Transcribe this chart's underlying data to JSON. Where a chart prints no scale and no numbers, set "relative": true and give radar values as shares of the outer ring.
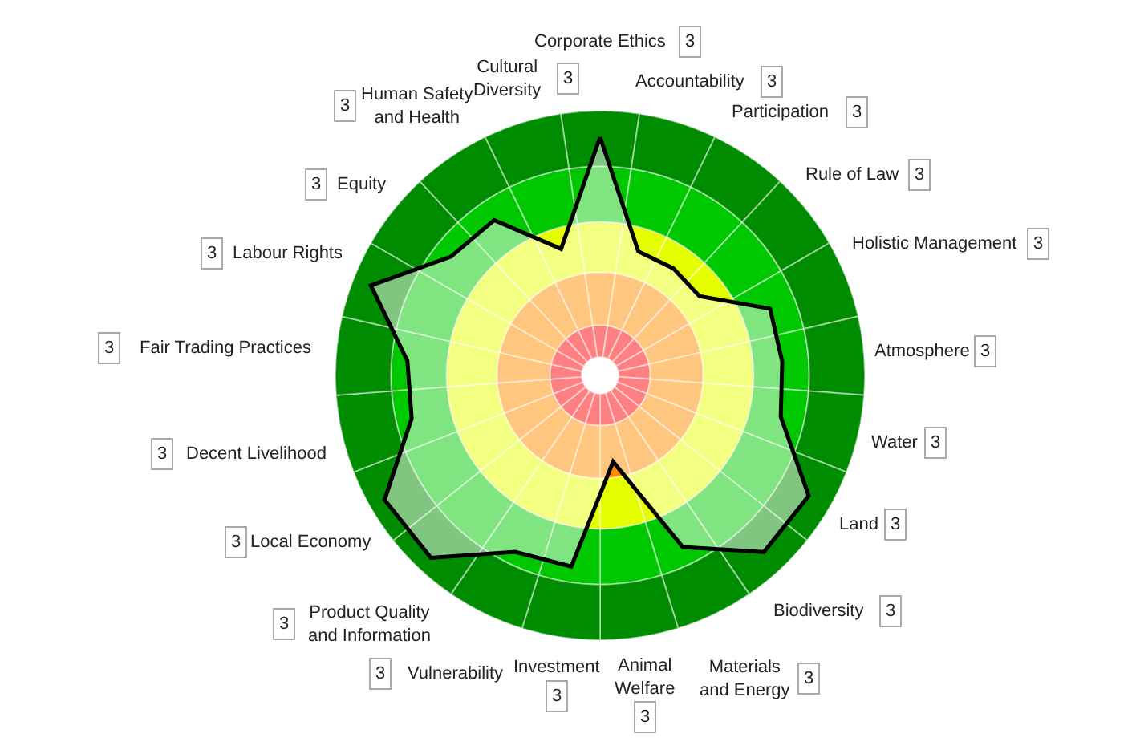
{
  "chart_data": {
    "type": "radar",
    "relative": true,
    "grid": "x",
    "categories": [
      "Corporate Ethics",
      "Accountability",
      "Participation",
      "Rule of Law",
      "Holistic Management",
      "Atmosphere",
      "Water",
      "Land",
      "Biodiversity",
      "Materials and Energy",
      "Animal Welfare",
      "Investment",
      "Vulnerability",
      "Product Quality and Information",
      "Local Economy",
      "Decent Livelihood",
      "Fair Trading Practices",
      "Labour Rights",
      "Equity",
      "Human Safety and Health",
      "Cultural Diversity"
    ],
    "series": [
      {
        "color": "#000000",
        "values": [
          0.9,
          0.49,
          0.49,
          0.48,
          0.69,
          0.69,
          0.7,
          0.91,
          0.91,
          0.72,
          0.33,
          0.73,
          0.74,
          0.94,
          0.94,
          0.73,
          0.73,
          0.93,
          0.72,
          0.71,
          0.5
        ]
      }
    ],
    "annotations": [
      "3",
      "3",
      "3",
      "3",
      "3",
      "3",
      "3",
      "3",
      "3",
      "3",
      "3",
      "3",
      "3",
      "3",
      "3",
      "3",
      "3",
      "3",
      "3",
      "3",
      "3"
    ]
  }
}
